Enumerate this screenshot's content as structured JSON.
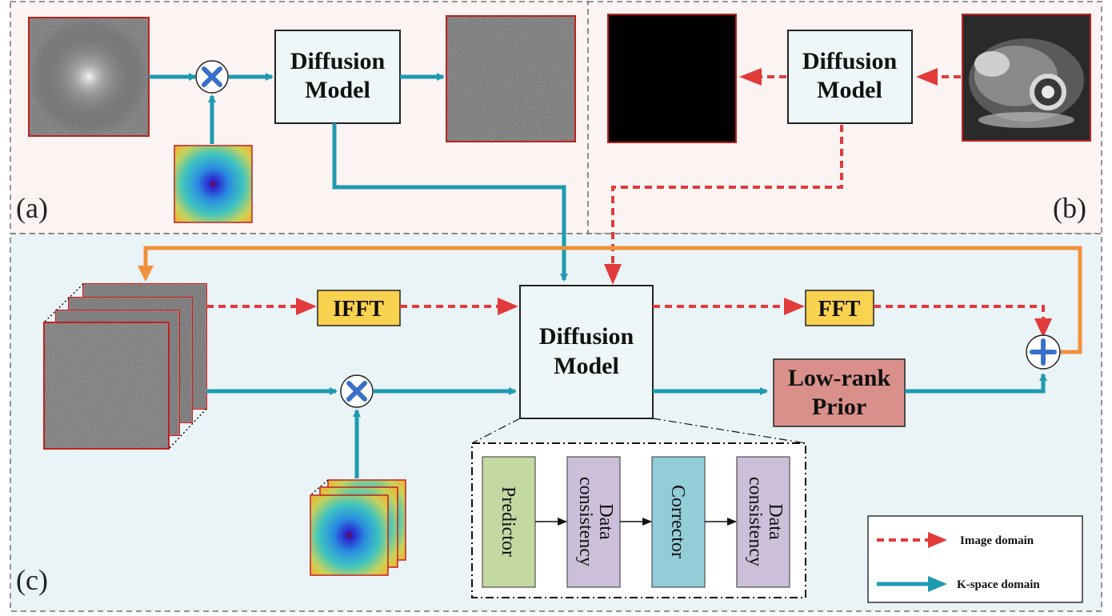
{
  "panels": {
    "a": "(a)",
    "b": "(b)",
    "c": "(c)"
  },
  "boxes": {
    "diffusion_a": [
      "Diffusion",
      "Model"
    ],
    "diffusion_b": [
      "Diffusion",
      "Model"
    ],
    "diffusion_c": [
      "Diffusion",
      "Model"
    ],
    "ifft": "IFFT",
    "fft": "FFT",
    "low_rank": [
      "Low-rank",
      "Prior"
    ]
  },
  "pipeline": {
    "predictor": "Predictor",
    "dc1": [
      "Data",
      "consistency"
    ],
    "corrector": "Corrector",
    "dc2": [
      "Data",
      "consistency"
    ]
  },
  "legend": {
    "image_domain": "Image domain",
    "kspace_domain": "K-space domain"
  },
  "colors": {
    "image_arrow": "#e23b3b",
    "kspace_arrow": "#1e9bb0",
    "feedback_arrow": "#f0903c",
    "panel_ab_bg": "#fcf3f3",
    "panel_c_bg": "#eaf3f6",
    "model_box": "#eef6f8",
    "fft_box": "#f9d24f",
    "lowrank_box": "#d9908a",
    "predictor": "#c4d8a2",
    "consistency": "#cbbfd9",
    "corrector": "#92cdd8",
    "multiply": "#3a6fc9"
  },
  "icons": [
    "multiply-icon",
    "plus-icon"
  ]
}
